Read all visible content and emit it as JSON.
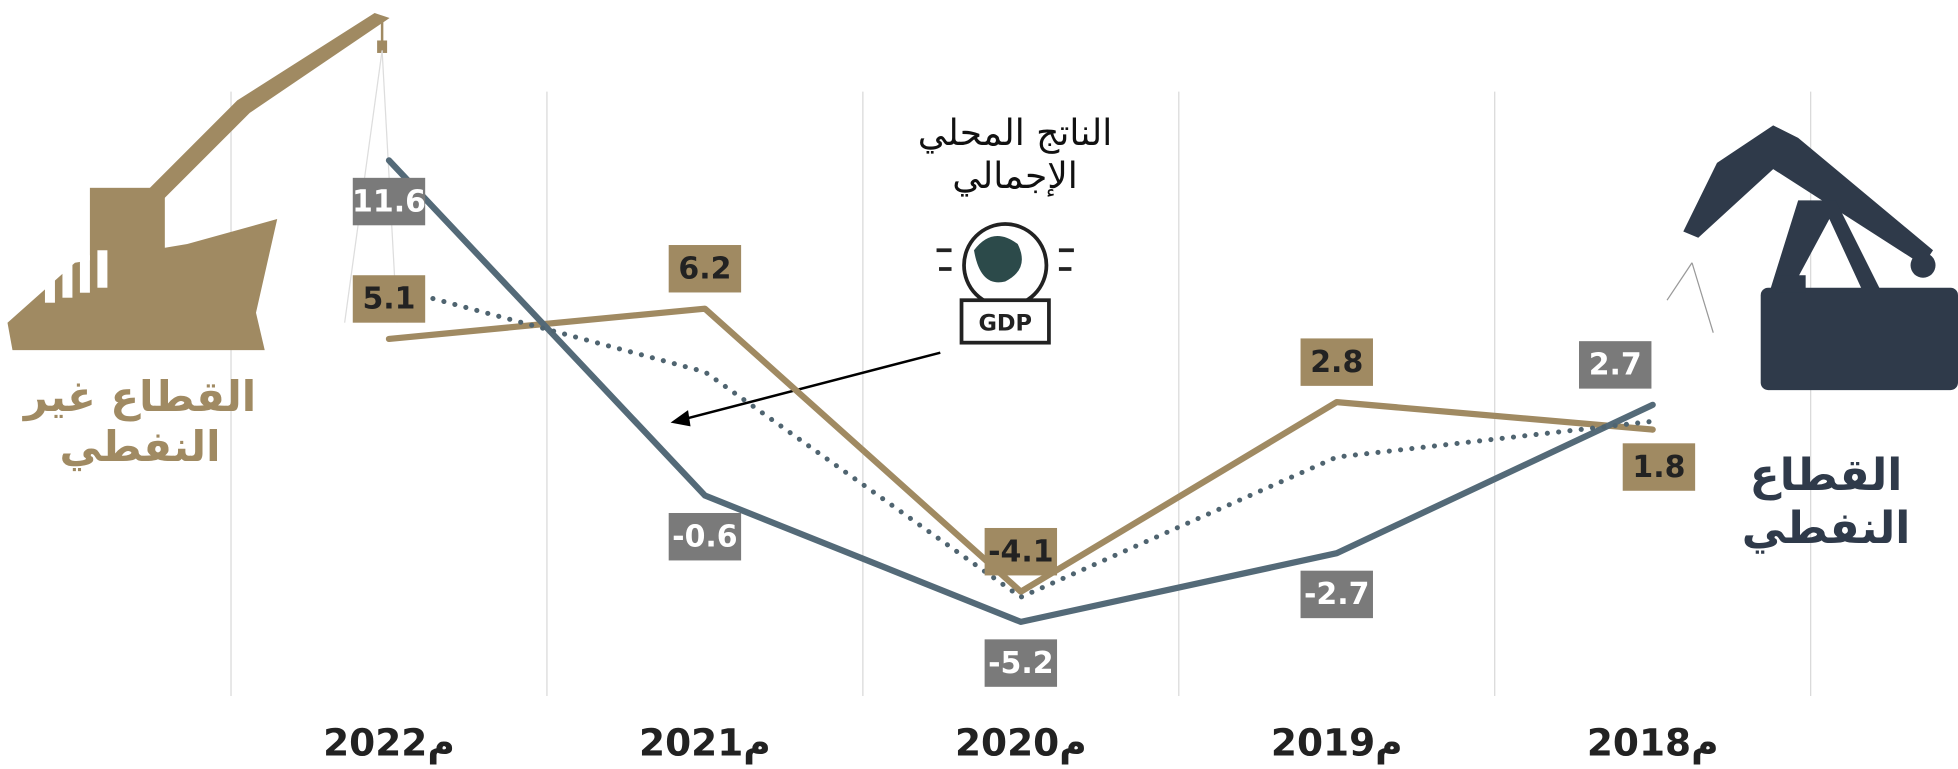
{
  "chart_data": {
    "type": "line",
    "categories": [
      "2022م",
      "2021م",
      "2020م",
      "2019م",
      "2018م"
    ],
    "series": [
      {
        "name": "القطاع غير النفطي",
        "color": "#a08a62",
        "style": "solid",
        "values": [
          5.1,
          6.2,
          -4.1,
          2.8,
          1.8
        ]
      },
      {
        "name": "القطاع النفطي",
        "color": "#546a78",
        "style": "solid",
        "values": [
          11.6,
          -0.6,
          -5.2,
          -2.7,
          2.7
        ]
      },
      {
        "name": "الناتج المحلي الإجمالي",
        "color": "#4f6470",
        "style": "dotted",
        "values": [
          7.0,
          3.9,
          -4.3,
          0.8,
          2.1
        ]
      }
    ],
    "ylim": [
      -7.9,
      14.1
    ],
    "grid": true,
    "icon_text": "GDP"
  }
}
